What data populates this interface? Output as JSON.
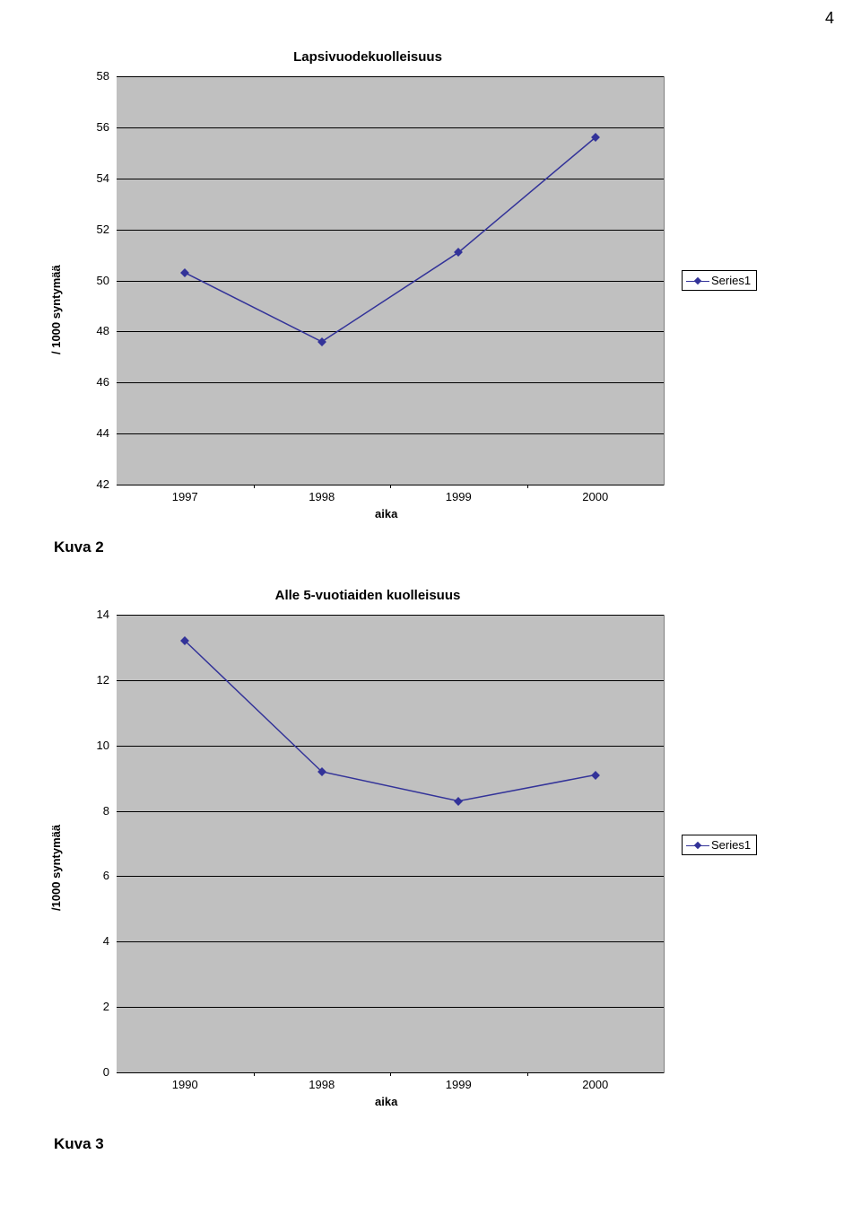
{
  "page_number": "4",
  "kuva2_label": "Kuva 2",
  "kuva3_label": "Kuva 3",
  "chart1": {
    "type": "line",
    "title": "Lapsivuodekuolleisuus",
    "ylabel": "/ 1000 syntymää",
    "xlabel": "aika",
    "title_fontsize": 15,
    "label_fontsize": 13,
    "background_color": "#c0c0c0",
    "grid_color": "#000000",
    "line_color": "#333399",
    "marker_color": "#333399",
    "line_width": 1.5,
    "marker_size": 7,
    "ylim": [
      42,
      58
    ],
    "ytick_step": 2,
    "yticks": [
      "42",
      "44",
      "46",
      "48",
      "50",
      "52",
      "54",
      "56",
      "58"
    ],
    "xticks": [
      "1997",
      "1998",
      "1999",
      "2000"
    ],
    "values": [
      50.3,
      47.6,
      51.1,
      55.6
    ],
    "legend_label": "Series1",
    "legend_position": "right"
  },
  "chart2": {
    "type": "line",
    "title": "Alle 5-vuotiaiden kuolleisuus",
    "ylabel": "/1000 syntymää",
    "xlabel": "aika",
    "title_fontsize": 15,
    "label_fontsize": 13,
    "background_color": "#c0c0c0",
    "grid_color": "#000000",
    "line_color": "#333399",
    "marker_color": "#333399",
    "line_width": 1.5,
    "marker_size": 7,
    "ylim": [
      0,
      14
    ],
    "ytick_step": 2,
    "yticks": [
      "0",
      "2",
      "4",
      "6",
      "8",
      "10",
      "12",
      "14"
    ],
    "xticks": [
      "1990",
      "1998",
      "1999",
      "2000"
    ],
    "values": [
      13.2,
      9.2,
      8.3,
      9.1
    ],
    "legend_label": "Series1",
    "legend_position": "right"
  }
}
